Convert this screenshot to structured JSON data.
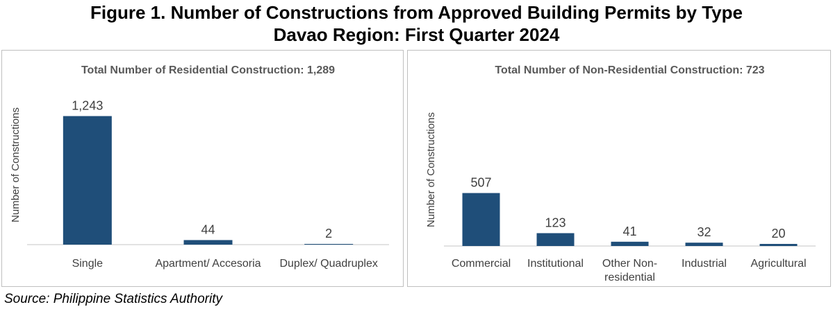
{
  "figure": {
    "title_line1": "Figure 1. Number of Constructions from Approved Building Permits by Type",
    "title_line2": "Davao Region: First Quarter 2024",
    "source": "Source: Philippine Statistics Authority"
  },
  "colors": {
    "bar": "#1f4e79",
    "axis": "#d9d9d9",
    "label": "#404040",
    "title": "#595959"
  },
  "chart_data": [
    {
      "type": "bar",
      "title": "Total Number of Residential Construction: 1,289",
      "ylabel": "Number of Constructions",
      "xlabel": "",
      "categories": [
        "Single",
        "Apartment/ Accesoria",
        "Duplex/ Quadruplex"
      ],
      "category_lines": [
        [
          "Single"
        ],
        [
          "Apartment/ Accesoria"
        ],
        [
          "Duplex/ Quadruplex"
        ]
      ],
      "values": [
        1243,
        44,
        2
      ],
      "data_labels": [
        "1,243",
        "44",
        "2"
      ],
      "ylim": [
        0,
        1300
      ],
      "grid": false,
      "legend": "none"
    },
    {
      "type": "bar",
      "title": "Total Number of Non-Residential Construction: 723",
      "ylabel": "Number of Constructions",
      "xlabel": "",
      "categories": [
        "Commercial",
        "Institutional",
        "Other Non-residential",
        "Industrial",
        "Agricultural"
      ],
      "category_lines": [
        [
          "Commercial"
        ],
        [
          "Institutional"
        ],
        [
          "Other Non-",
          "residential"
        ],
        [
          "Industrial"
        ],
        [
          "Agricultural"
        ]
      ],
      "values": [
        507,
        123,
        41,
        32,
        20
      ],
      "data_labels": [
        "507",
        "123",
        "41",
        "32",
        "20"
      ],
      "ylim": [
        0,
        1300
      ],
      "grid": false,
      "legend": "none"
    }
  ]
}
